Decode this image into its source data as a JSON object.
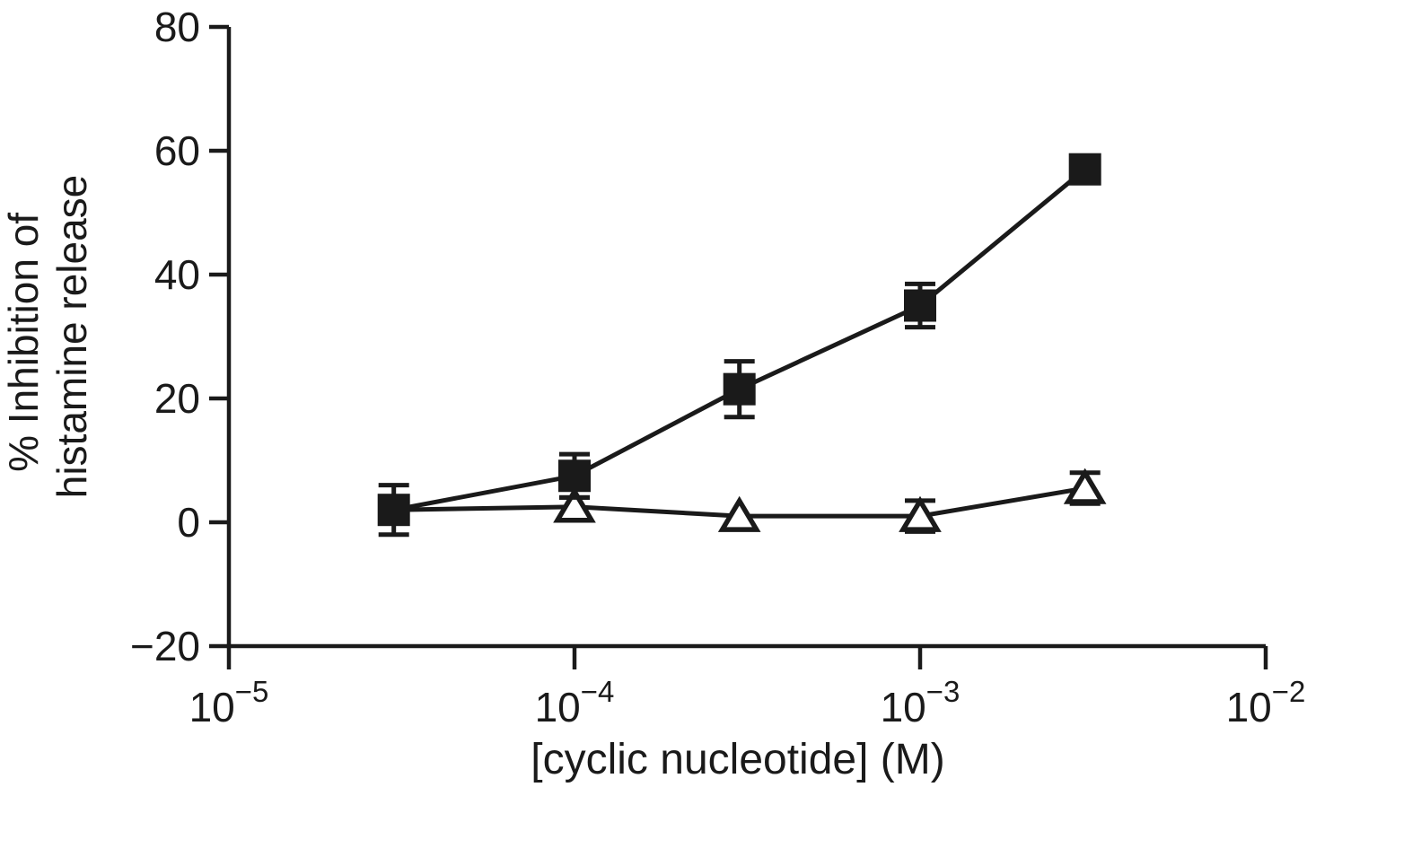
{
  "chart_data": {
    "type": "line",
    "title": "",
    "xlabel": "[cyclic nucleotide] (M)",
    "ylabel_lines": [
      "% Inhibition of",
      "histamine release"
    ],
    "x_scale": "log",
    "xlim": [
      1e-05,
      0.01
    ],
    "ylim": [
      -20,
      80
    ],
    "x_ticks": [
      1e-05,
      0.0001,
      0.001,
      0.01
    ],
    "x_tick_exponents": [
      -5,
      -4,
      -3,
      -2
    ],
    "y_ticks": [
      -20,
      0,
      20,
      40,
      60,
      80
    ],
    "grid": false,
    "legend": "none",
    "colors": {
      "line": "#1a1a1a",
      "background": "#ffffff"
    },
    "series": [
      {
        "name": "filled-square",
        "marker": "filled-square",
        "x": [
          3e-05,
          0.0001,
          0.0003,
          0.001,
          0.003
        ],
        "y": [
          2,
          7.5,
          21.5,
          35,
          57
        ],
        "yerr": [
          4,
          3.5,
          4.5,
          3.5,
          0
        ],
        "marker_hidden": [
          false,
          false,
          false,
          false,
          false
        ]
      },
      {
        "name": "open-triangle",
        "marker": "open-triangle",
        "x": [
          3e-05,
          0.0001,
          0.0003,
          0.001,
          0.003
        ],
        "y": [
          2,
          2.5,
          1,
          1,
          5.5
        ],
        "yerr": [
          0,
          1.5,
          0,
          2.5,
          2.5
        ],
        "marker_hidden": [
          true,
          false,
          false,
          false,
          false
        ]
      }
    ]
  }
}
